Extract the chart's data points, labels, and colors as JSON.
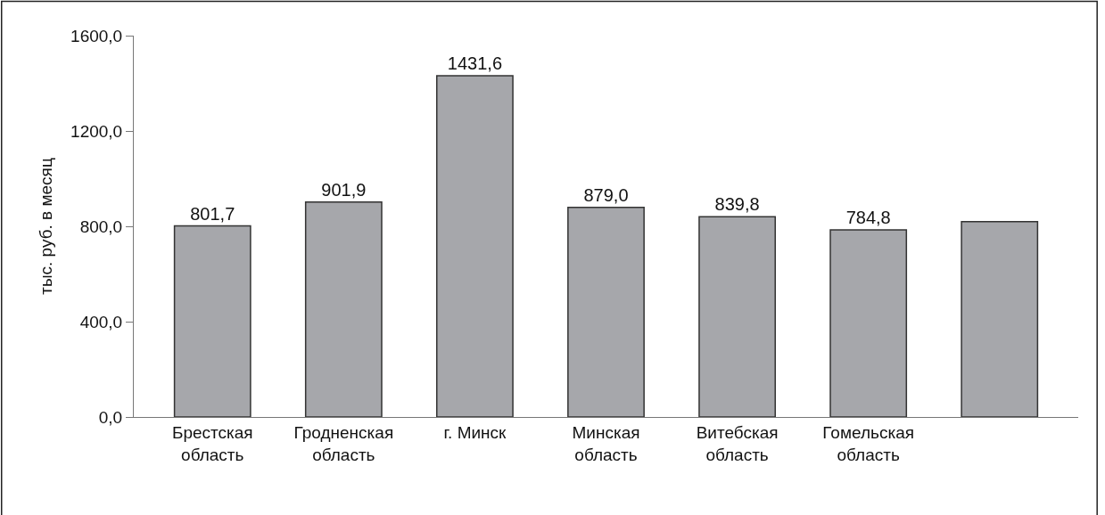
{
  "chart_data": {
    "type": "bar",
    "ylabel": "тыс. руб. в месяц",
    "categories": [
      "Брестская область",
      "Гродненская область",
      "г. Минск",
      "Минская область",
      "Витебская область",
      "Гомельская область",
      null
    ],
    "values": [
      801.7,
      901.9,
      1431.6,
      879.0,
      839.8,
      784.8,
      820
    ],
    "value_labels": [
      "801,7",
      "901,9",
      "1431,6",
      "879,0",
      "839,8",
      "784,8",
      null
    ],
    "color": "#a6a7ab",
    "ylim": [
      0,
      1600
    ],
    "yticks": [
      {
        "value": 0,
        "label": "0,0"
      },
      {
        "value": 400,
        "label": "400,0"
      },
      {
        "value": 800,
        "label": "800,0"
      },
      {
        "value": 1200,
        "label": "1200,0"
      },
      {
        "value": 1600,
        "label": "1600,0"
      }
    ],
    "legend": false
  }
}
